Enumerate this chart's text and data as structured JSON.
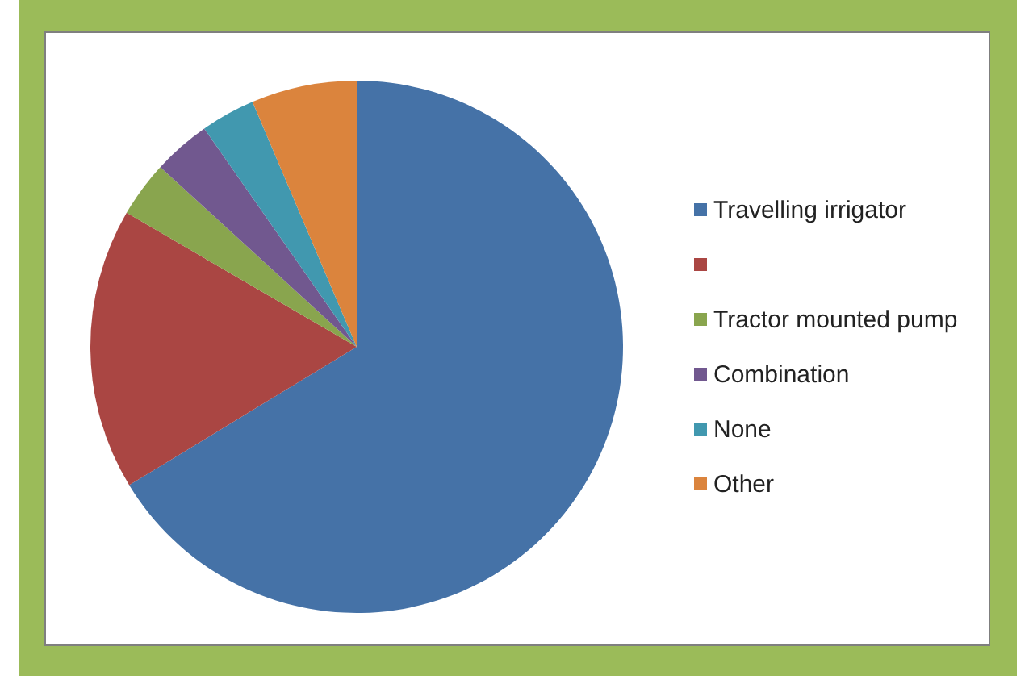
{
  "chart_data": {
    "type": "pie",
    "categories": [
      "Travelling irrigator",
      null,
      "Tractor mounted pump",
      "Combination",
      "None",
      "Other"
    ],
    "values": [
      66.3,
      17.1,
      3.4,
      3.5,
      3.3,
      6.4
    ],
    "colors": [
      "#4572a7",
      "#aa4643",
      "#89a54e",
      "#71588f",
      "#4198af",
      "#db843d"
    ],
    "legend": "right"
  }
}
